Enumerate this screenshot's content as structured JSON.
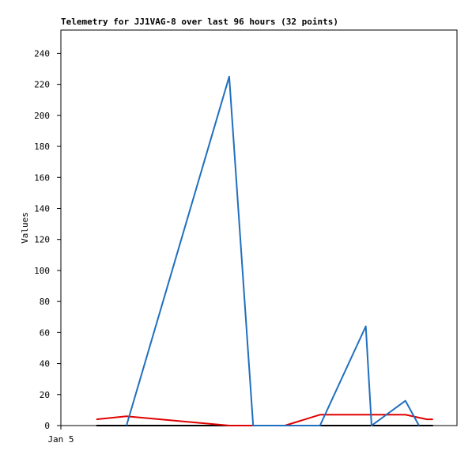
{
  "chart_data": {
    "type": "line",
    "title": "Telemetry for JJ1VAG-8 over last 96 hours (32 points)",
    "y_label": "Values",
    "xlim": [
      0,
      96
    ],
    "xticks": [
      {
        "value": 0,
        "label": "Jan 5"
      }
    ],
    "ylim": [
      0,
      255
    ],
    "yticks": [
      0,
      20,
      40,
      60,
      80,
      100,
      120,
      140,
      160,
      180,
      200,
      220,
      240
    ],
    "series": [
      {
        "color": "#000000",
        "x": [
          8.6,
          90.2
        ],
        "values": [
          0,
          0
        ]
      },
      {
        "color": "#e00000",
        "x": [
          8.6,
          15.9,
          40.8,
          54.3,
          62.8,
          83.5,
          88.7,
          90.2
        ],
        "values": [
          4,
          6,
          0,
          0,
          7,
          7,
          4,
          4
        ]
      },
      {
        "color": "#1f6fbf",
        "x": [
          15.9,
          40.8,
          46.6,
          54.3,
          62.8,
          73.9,
          75.3,
          83.5,
          86.8
        ],
        "values": [
          0,
          225,
          0,
          0,
          0,
          64,
          0,
          16,
          0
        ]
      }
    ]
  }
}
